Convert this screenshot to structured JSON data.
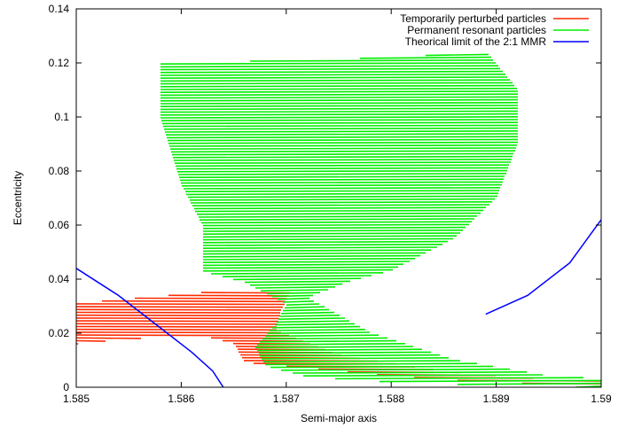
{
  "chart_data": {
    "type": "line",
    "title": "",
    "xlabel": "Semi-major axis",
    "ylabel": "Eccentricity",
    "xlim": [
      1.585,
      1.59
    ],
    "ylim": [
      0,
      0.14
    ],
    "xticks": [
      1.585,
      1.586,
      1.587,
      1.588,
      1.589,
      1.59
    ],
    "xtick_labels": [
      "1.585",
      "1.586",
      "1.587",
      "1.588",
      "1.589",
      "1.59"
    ],
    "yticks": [
      0,
      0.02,
      0.04,
      0.06,
      0.08,
      0.1,
      0.12,
      0.14
    ],
    "ytick_labels": [
      "0",
      "0.02",
      "0.04",
      "0.06",
      "0.08",
      "0.1",
      "0.12",
      "0.14"
    ],
    "grid": false,
    "legend_position": "top-right",
    "series": [
      {
        "name": "Temporarily perturbed particles",
        "color": "#ff2a00",
        "kind": "band",
        "outline": [
          [
            1.585,
            0.031
          ],
          [
            1.5856,
            0.033
          ],
          [
            1.5862,
            0.035
          ],
          [
            1.5868,
            0.036
          ],
          [
            1.58705,
            0.0355
          ],
          [
            1.58695,
            0.029
          ],
          [
            1.5869,
            0.021
          ],
          [
            1.5875,
            0.012
          ],
          [
            1.5885,
            0.006
          ],
          [
            1.5895,
            0.003
          ],
          [
            1.59,
            0.0025
          ],
          [
            1.59,
            0.001
          ],
          [
            1.589,
            0.0015
          ],
          [
            1.588,
            0.004
          ],
          [
            1.5872,
            0.007
          ],
          [
            1.5866,
            0.009
          ],
          [
            1.5865,
            0.016
          ],
          [
            1.5862,
            0.019
          ],
          [
            1.5855,
            0.018
          ],
          [
            1.585,
            0.016
          ]
        ]
      },
      {
        "name": "Permanent resonant particles",
        "color": "#00ee00",
        "kind": "band",
        "outline": [
          [
            1.5858,
            0.12
          ],
          [
            1.5868,
            0.121
          ],
          [
            1.5878,
            0.122
          ],
          [
            1.5889,
            0.124
          ],
          [
            1.5892,
            0.11
          ],
          [
            1.5892,
            0.09
          ],
          [
            1.589,
            0.07
          ],
          [
            1.5886,
            0.055
          ],
          [
            1.588,
            0.043
          ],
          [
            1.5876,
            0.039
          ],
          [
            1.5872,
            0.033
          ],
          [
            1.5878,
            0.02
          ],
          [
            1.5886,
            0.01
          ],
          [
            1.5895,
            0.004
          ],
          [
            1.59,
            0.003
          ],
          [
            1.59,
            0.0
          ],
          [
            1.589,
            0.0008
          ],
          [
            1.588,
            0.002
          ],
          [
            1.5872,
            0.004
          ],
          [
            1.5868,
            0.008
          ],
          [
            1.5867,
            0.015
          ],
          [
            1.5869,
            0.024
          ],
          [
            1.587,
            0.031
          ],
          [
            1.5866,
            0.039
          ],
          [
            1.5862,
            0.043
          ],
          [
            1.5862,
            0.06
          ],
          [
            1.586,
            0.075
          ],
          [
            1.5858,
            0.1
          ]
        ]
      },
      {
        "name": "Theorical limit of the 2:1 MMR",
        "color": "#0000ff",
        "kind": "curves",
        "segments": [
          [
            [
              1.585,
              0.044
            ],
            [
              1.5854,
              0.034
            ],
            [
              1.5858,
              0.022
            ],
            [
              1.5861,
              0.013
            ],
            [
              1.5863,
              0.006
            ],
            [
              1.5864,
              0.0
            ]
          ],
          [
            [
              1.5889,
              0.027
            ],
            [
              1.5893,
              0.034
            ],
            [
              1.5897,
              0.046
            ],
            [
              1.59,
              0.062
            ]
          ]
        ]
      }
    ]
  }
}
